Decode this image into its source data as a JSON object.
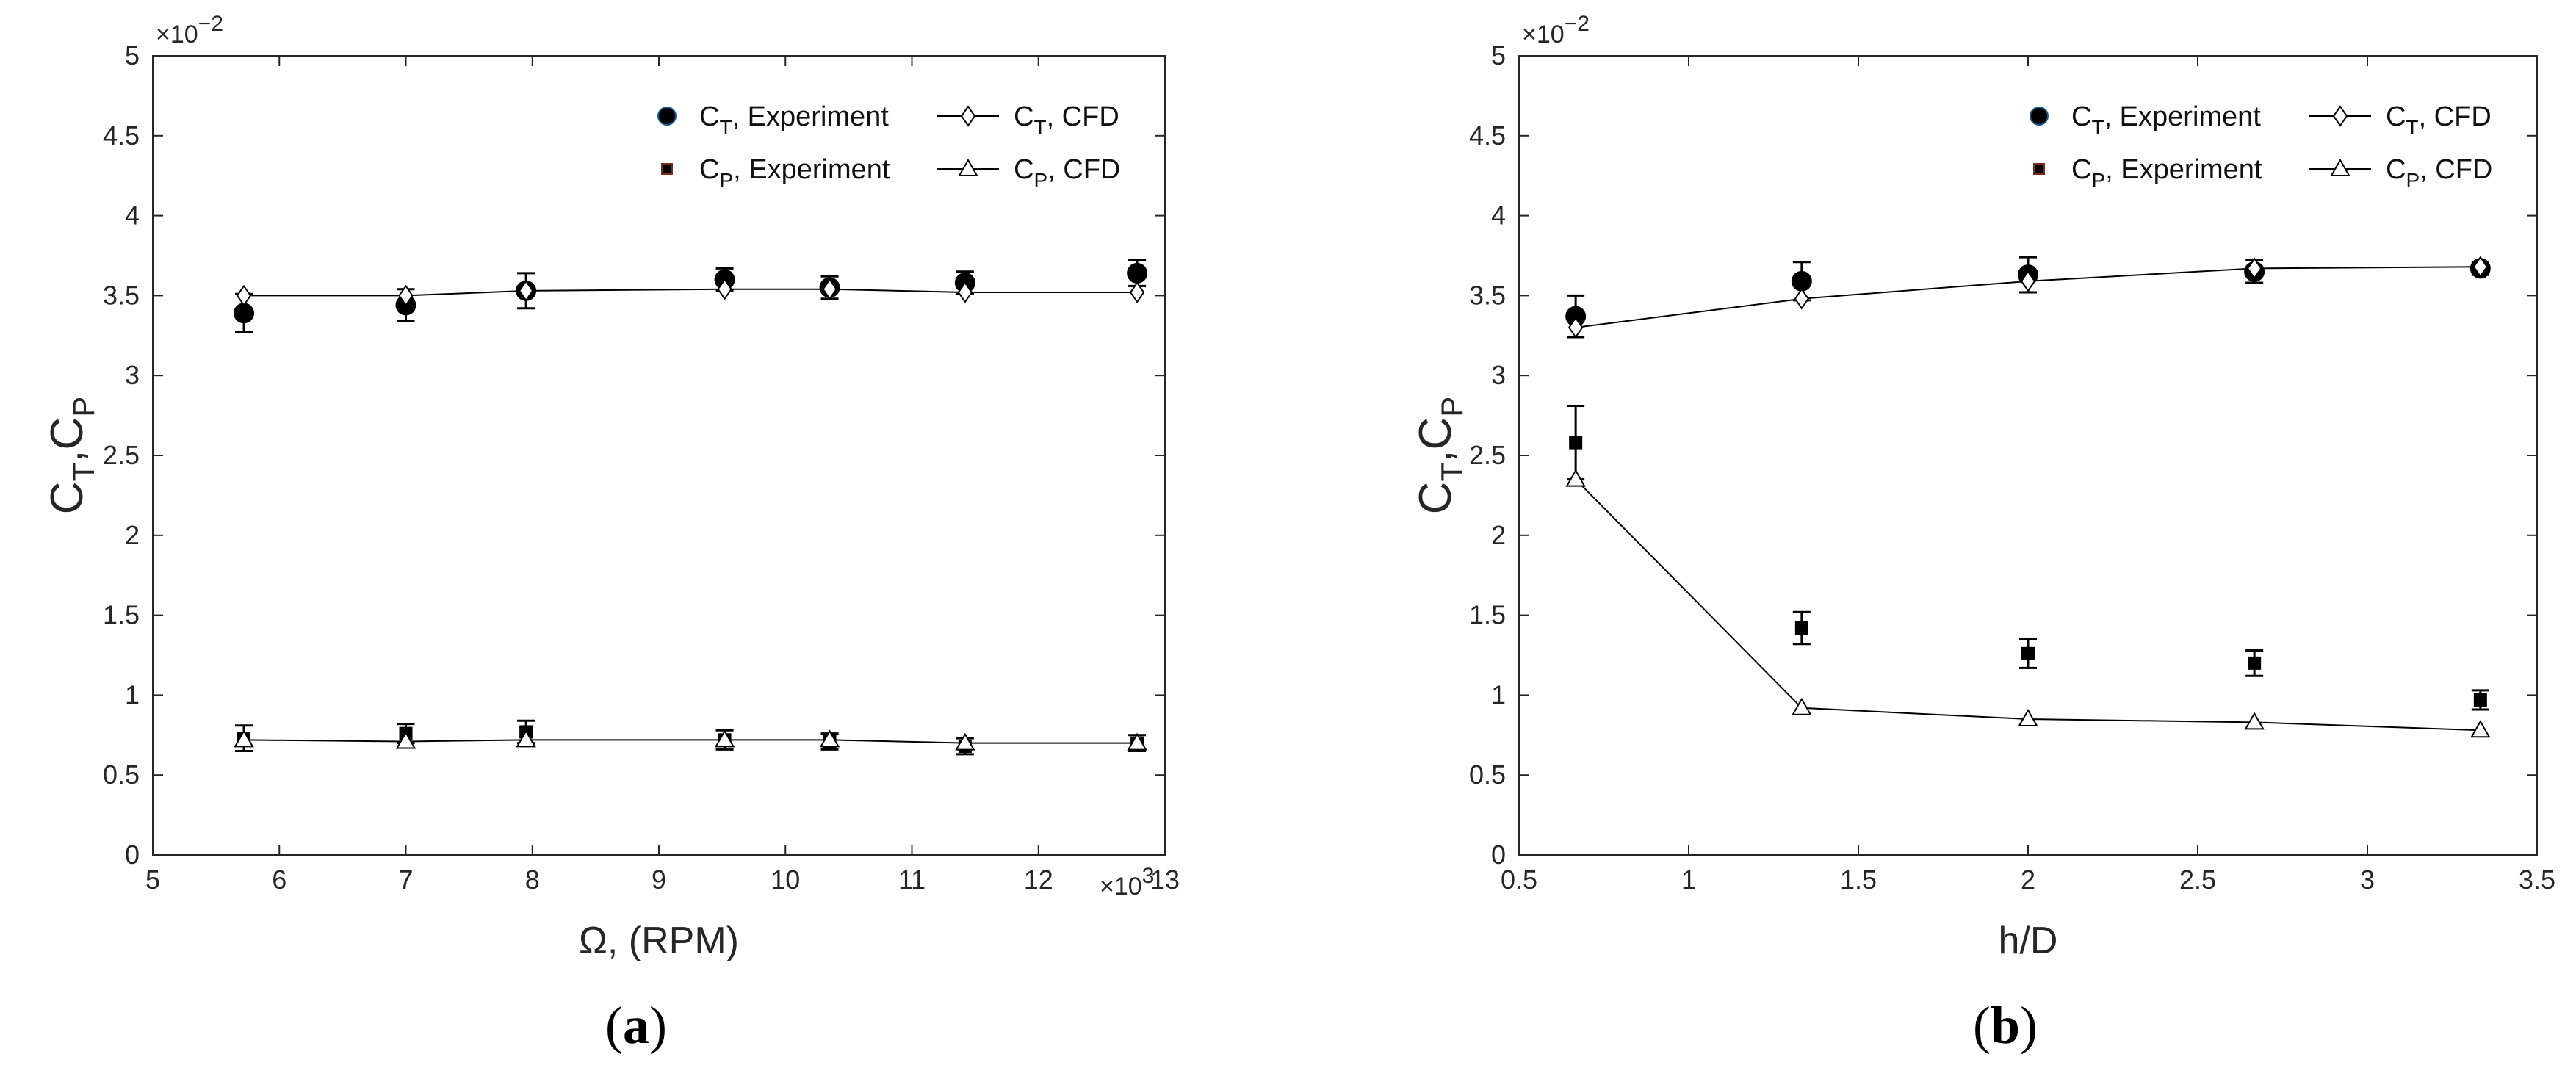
{
  "chart_data": [
    {
      "type": "scatter",
      "panel_label": {
        "open": "(",
        "letter": "a",
        "close": ")"
      },
      "xlabel": "Ω, (RPM)",
      "ylabel": "C_T,C_P",
      "x_multiplier": "×10",
      "x_multiplier_exp": "3",
      "y_multiplier": "×10",
      "y_multiplier_exp": "−2",
      "xlim": [
        5,
        13
      ],
      "ylim": [
        0,
        5
      ],
      "x_ticks": [
        5,
        6,
        7,
        8,
        9,
        10,
        11,
        12,
        13
      ],
      "x_tick_labels": [
        "5",
        "6",
        "7",
        "8",
        "9",
        "10",
        "11",
        "12",
        "13"
      ],
      "y_ticks": [
        0,
        0.5,
        1,
        1.5,
        2,
        2.5,
        3,
        3.5,
        4,
        4.5,
        5
      ],
      "y_tick_labels": [
        "0",
        "0.5",
        "1",
        "1.5",
        "2",
        "2.5",
        "3",
        "3.5",
        "4",
        "4.5",
        "5"
      ],
      "legend": [
        {
          "sym": "C",
          "sub": "T",
          "rest": ", Experiment"
        },
        {
          "sym": "C",
          "sub": "T",
          "rest": ", CFD"
        },
        {
          "sym": "C",
          "sub": "P",
          "rest": ", Experiment"
        },
        {
          "sym": "C",
          "sub": "P",
          "rest": ", CFD"
        }
      ],
      "series": [
        {
          "name": "CT, Experiment",
          "marker": "circle",
          "x": [
            5.72,
            7.0,
            7.95,
            9.52,
            10.35,
            11.42,
            12.78
          ],
          "y": [
            3.39,
            3.44,
            3.53,
            3.6,
            3.55,
            3.58,
            3.64
          ],
          "err": [
            0.12,
            0.1,
            0.11,
            0.07,
            0.07,
            0.07,
            0.08
          ]
        },
        {
          "name": "CT, CFD",
          "marker": "diamond",
          "line": true,
          "x": [
            5.72,
            7.0,
            7.95,
            9.52,
            10.35,
            11.42,
            12.78
          ],
          "y": [
            3.5,
            3.5,
            3.53,
            3.54,
            3.54,
            3.52,
            3.52
          ]
        },
        {
          "name": "CP, Experiment",
          "marker": "square",
          "x": [
            5.72,
            7.0,
            7.95,
            9.52,
            10.35,
            11.42,
            12.78
          ],
          "y": [
            0.73,
            0.76,
            0.77,
            0.72,
            0.71,
            0.68,
            0.7
          ],
          "err": [
            0.08,
            0.06,
            0.07,
            0.06,
            0.05,
            0.05,
            0.05
          ]
        },
        {
          "name": "CP, CFD",
          "marker": "triangle",
          "line": true,
          "x": [
            5.72,
            7.0,
            7.95,
            9.52,
            10.35,
            11.42,
            12.78
          ],
          "y": [
            0.72,
            0.71,
            0.72,
            0.72,
            0.72,
            0.7,
            0.7
          ]
        }
      ]
    },
    {
      "type": "scatter",
      "panel_label": {
        "open": "(",
        "letter": "b",
        "close": ")"
      },
      "xlabel": "h/D",
      "ylabel": "C_T,C_P",
      "y_multiplier": "×10",
      "y_multiplier_exp": "−2",
      "xlim": [
        0.5,
        3.5
      ],
      "ylim": [
        0,
        5
      ],
      "x_ticks": [
        0.5,
        1,
        1.5,
        2,
        2.5,
        3,
        3.5
      ],
      "x_tick_labels": [
        "0.5",
        "1",
        "1.5",
        "2",
        "2.5",
        "3",
        "3.5"
      ],
      "y_ticks": [
        0,
        0.5,
        1,
        1.5,
        2,
        2.5,
        3,
        3.5,
        4,
        4.5,
        5
      ],
      "y_tick_labels": [
        "0",
        "0.5",
        "1",
        "1.5",
        "2",
        "2.5",
        "3",
        "3.5",
        "4",
        "4.5",
        "5"
      ],
      "legend": [
        {
          "sym": "C",
          "sub": "T",
          "rest": ", Experiment"
        },
        {
          "sym": "C",
          "sub": "T",
          "rest": ", CFD"
        },
        {
          "sym": "C",
          "sub": "P",
          "rest": ", Experiment"
        },
        {
          "sym": "C",
          "sub": "P",
          "rest": ", CFD"
        }
      ],
      "series": [
        {
          "name": "CT, Experiment",
          "marker": "circle",
          "x": [
            0.667,
            1.333,
            2.0,
            2.667,
            3.333
          ],
          "y": [
            3.37,
            3.59,
            3.63,
            3.65,
            3.67
          ],
          "err": [
            0.13,
            0.12,
            0.11,
            0.07,
            0.04
          ]
        },
        {
          "name": "CT, CFD",
          "marker": "diamond",
          "line": true,
          "x": [
            0.667,
            1.333,
            2.0,
            2.667,
            3.333
          ],
          "y": [
            3.3,
            3.48,
            3.59,
            3.67,
            3.68
          ]
        },
        {
          "name": "CP, Experiment",
          "marker": "square",
          "x": [
            0.667,
            1.333,
            2.0,
            2.667,
            3.333
          ],
          "y": [
            2.58,
            1.42,
            1.26,
            1.2,
            0.97
          ],
          "err": [
            0.23,
            0.1,
            0.09,
            0.08,
            0.06
          ]
        },
        {
          "name": "CP, CFD",
          "marker": "triangle",
          "line": true,
          "x": [
            0.667,
            1.333,
            2.0,
            2.667,
            3.333
          ],
          "y": [
            2.35,
            0.92,
            0.85,
            0.83,
            0.78
          ]
        }
      ]
    }
  ]
}
